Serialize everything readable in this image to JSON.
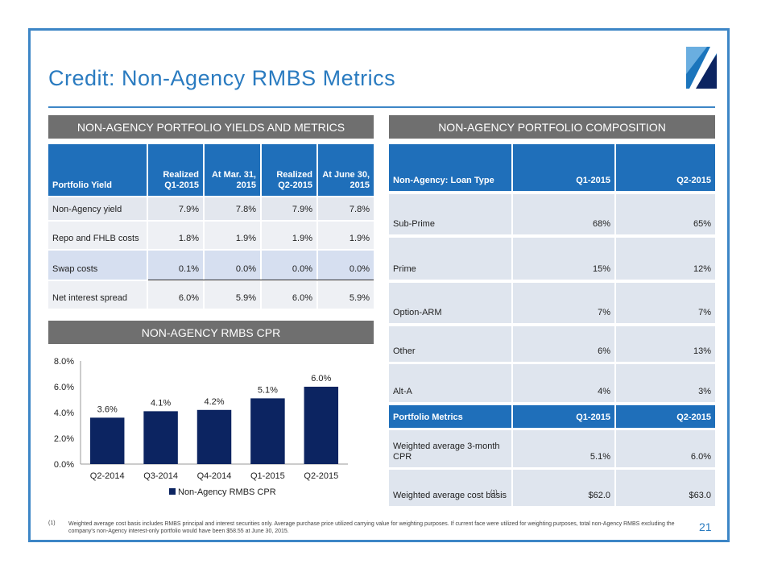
{
  "header": {
    "title": "Credit: Non-Agency RMBS Metrics"
  },
  "yields": {
    "heading": "NON-AGENCY PORTFOLIO YIELDS AND METRICS",
    "columns": [
      "Portfolio Yield",
      "Realized\nQ1-2015",
      "At Mar. 31,\n2015",
      "Realized\nQ2-2015",
      "At June 30,\n2015"
    ],
    "rows": [
      [
        "Non-Agency yield",
        "7.9%",
        "7.8%",
        "7.9%",
        "7.8%"
      ],
      [
        "Repo and FHLB costs",
        "1.8%",
        "1.9%",
        "1.9%",
        "1.9%"
      ],
      [
        "Swap costs",
        "0.1%",
        "0.0%",
        "0.0%",
        "0.0%"
      ],
      [
        "Net interest spread",
        "6.0%",
        "5.9%",
        "6.0%",
        "5.9%"
      ]
    ]
  },
  "composition": {
    "heading": "NON-AGENCY PORTFOLIO COMPOSITION",
    "columns": [
      "Non-Agency: Loan Type",
      "Q1-2015",
      "Q2-2015"
    ],
    "rows": [
      [
        "Sub-Prime",
        "68%",
        "65%"
      ],
      [
        "Prime",
        "15%",
        "12%"
      ],
      [
        "Option-ARM",
        "7%",
        "7%"
      ],
      [
        "Other",
        "6%",
        "13%"
      ],
      [
        "Alt-A",
        "4%",
        "3%"
      ]
    ],
    "metrics_columns": [
      "Portfolio Metrics",
      "Q1-2015",
      "Q2-2015"
    ],
    "metrics_rows": [
      [
        "Weighted average 3-month CPR",
        "5.1%",
        "6.0%"
      ],
      [
        "Weighted average cost basis",
        "$62.0",
        "$63.0"
      ]
    ],
    "cost_basis_note": "(1)"
  },
  "cpr": {
    "heading": "NON-AGENCY RMBS CPR"
  },
  "chart_data": {
    "type": "bar",
    "categories": [
      "Q2-2014",
      "Q3-2014",
      "Q4-2014",
      "Q1-2015",
      "Q2-2015"
    ],
    "series": [
      {
        "name": "Non-Agency RMBS CPR",
        "color": "#0c2461",
        "values": [
          3.6,
          4.1,
          4.2,
          5.1,
          6.0
        ],
        "value_labels": [
          "3.6%",
          "4.1%",
          "4.2%",
          "5.1%",
          "6.0%"
        ]
      }
    ],
    "ylim": [
      0,
      8
    ],
    "yticks": [
      {
        "value": 0,
        "label": "0.0%"
      },
      {
        "value": 2,
        "label": "2.0%"
      },
      {
        "value": 4,
        "label": "4.0%"
      },
      {
        "value": 6,
        "label": "6.0%"
      },
      {
        "value": 8,
        "label": "8.0%"
      }
    ],
    "legend": "bottom"
  },
  "footnote": {
    "marker": "(1)",
    "text": "Weighted average cost basis includes RMBS principal and interest securities only.  Average purchase price utilized carrying value for weighting purposes.  If current face were utilized for weighting purposes, total non-Agency RMBS excluding the company's non-Agency interest-only portfolio would have been $58.55 at June 30, 2015."
  },
  "page_number": "21"
}
